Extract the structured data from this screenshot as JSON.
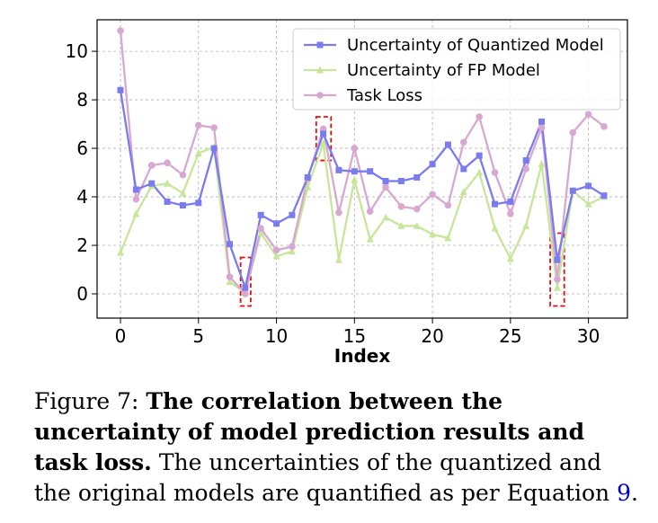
{
  "chart_data": {
    "type": "line",
    "xlabel": "Index",
    "ylabel": "",
    "xlim": [
      -1.5,
      32.5
    ],
    "ylim": [
      -1.0,
      11.3
    ],
    "xticks": [
      0,
      5,
      10,
      15,
      20,
      25,
      30
    ],
    "yticks": [
      0,
      2,
      4,
      6,
      8,
      10
    ],
    "grid": true,
    "legend_position": "top-right",
    "x": [
      0,
      1,
      2,
      3,
      4,
      5,
      6,
      7,
      8,
      9,
      10,
      11,
      12,
      13,
      14,
      15,
      16,
      17,
      18,
      19,
      20,
      21,
      22,
      23,
      24,
      25,
      26,
      27,
      28,
      29,
      30,
      31
    ],
    "series": [
      {
        "name": "Uncertainty of Quantized Model",
        "color": "#7b7bf0",
        "marker": "square",
        "values": [
          8.4,
          4.3,
          4.55,
          3.8,
          3.65,
          3.75,
          6.0,
          2.05,
          0.25,
          3.25,
          2.9,
          3.25,
          4.8,
          6.6,
          5.1,
          5.05,
          5.05,
          4.65,
          4.65,
          4.8,
          5.35,
          6.15,
          5.15,
          5.7,
          3.7,
          3.8,
          5.5,
          7.1,
          1.4,
          4.25,
          4.45,
          4.05
        ]
      },
      {
        "name": "Uncertainty of FP Model",
        "color": "#c8e69a",
        "marker": "triangle",
        "values": [
          1.7,
          3.3,
          4.45,
          4.55,
          4.15,
          5.8,
          6.05,
          0.5,
          0.05,
          2.5,
          1.55,
          1.75,
          4.4,
          6.2,
          1.4,
          4.7,
          2.25,
          3.15,
          2.8,
          2.8,
          2.45,
          2.3,
          4.2,
          5.0,
          2.7,
          1.45,
          2.8,
          5.35,
          0.25,
          4.25,
          3.7,
          4.0
        ]
      },
      {
        "name": "Task Loss",
        "color": "#d8a8d0",
        "marker": "circle",
        "values": [
          10.85,
          3.9,
          5.3,
          5.4,
          4.9,
          6.95,
          6.85,
          0.7,
          0.0,
          2.7,
          1.8,
          1.95,
          4.75,
          6.8,
          3.35,
          6.0,
          3.4,
          4.4,
          3.6,
          3.5,
          4.1,
          3.65,
          6.25,
          7.3,
          5.0,
          3.3,
          5.15,
          6.85,
          0.6,
          6.65,
          7.4,
          6.9
        ]
      }
    ],
    "highlight_boxes": [
      {
        "x": [
          7.7,
          8.35
        ],
        "y": [
          -0.5,
          1.5
        ]
      },
      {
        "x": [
          12.55,
          13.5
        ],
        "y": [
          5.5,
          7.3
        ]
      },
      {
        "x": [
          27.55,
          28.45
        ],
        "y": [
          -0.5,
          2.5
        ]
      }
    ]
  },
  "caption": {
    "label": "Figure 7: ",
    "bold": "The correlation between the uncertainty of model prediction results and task loss.",
    "text_before_ref": " The uncertainties of the quantized and the original models are quantified as per Equation ",
    "ref": "9",
    "text_after_ref": "."
  }
}
